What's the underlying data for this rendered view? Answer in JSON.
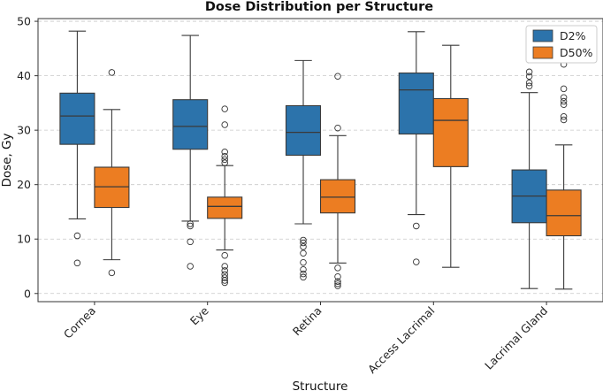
{
  "chart_data": {
    "type": "box",
    "title": "Dose Distribution per Structure",
    "xlabel": "Structure",
    "ylabel": "Dose, Gy",
    "ylim": [
      -1.5,
      50.5
    ],
    "yticks": [
      0,
      10,
      20,
      30,
      40,
      50
    ],
    "grid": "horizontal-dashed",
    "legend_position": "top-right",
    "categories": [
      "Cornea",
      "Eye",
      "Retina",
      "Access Lacrimal",
      "Lacrimal Gland"
    ],
    "series": [
      {
        "name": "D2%",
        "color": "#2c73ab",
        "boxes": [
          {
            "whislo": 13.7,
            "q1": 27.4,
            "med": 32.6,
            "q3": 36.8,
            "whishi": 48.2,
            "fliers": [
              10.6,
              5.6
            ]
          },
          {
            "whislo": 13.3,
            "q1": 26.5,
            "med": 30.7,
            "q3": 35.6,
            "whishi": 47.4,
            "fliers": [
              12.8,
              12.4,
              9.5,
              5.0
            ]
          },
          {
            "whislo": 12.8,
            "q1": 25.4,
            "med": 29.6,
            "q3": 34.5,
            "whishi": 42.8,
            "fliers": [
              9.8,
              9.3,
              8.6,
              7.4,
              5.7,
              4.4,
              3.6,
              3.0
            ]
          },
          {
            "whislo": 14.5,
            "q1": 29.3,
            "med": 37.4,
            "q3": 40.5,
            "whishi": 48.1,
            "fliers": [
              12.4,
              5.8
            ]
          },
          {
            "whislo": 0.9,
            "q1": 13.0,
            "med": 17.9,
            "q3": 22.7,
            "whishi": 36.9,
            "fliers": [
              42.9,
              40.7,
              39.9,
              38.7,
              38.1
            ]
          }
        ]
      },
      {
        "name": "D50%",
        "color": "#ec7d22",
        "boxes": [
          {
            "whislo": 6.2,
            "q1": 15.8,
            "med": 19.6,
            "q3": 23.2,
            "whishi": 33.8,
            "fliers": [
              40.6,
              3.8
            ]
          },
          {
            "whislo": 8.0,
            "q1": 13.8,
            "med": 16.0,
            "q3": 17.7,
            "whishi": 23.5,
            "fliers": [
              33.9,
              31.0,
              26.0,
              25.2,
              24.6,
              24.0,
              7.0,
              5.0,
              4.2,
              3.5,
              2.9,
              2.4,
              2.0
            ]
          },
          {
            "whislo": 5.6,
            "q1": 14.8,
            "med": 17.7,
            "q3": 20.9,
            "whishi": 29.0,
            "fliers": [
              39.9,
              30.4,
              4.7,
              3.1,
              2.2,
              1.8,
              1.4
            ]
          },
          {
            "whislo": 4.8,
            "q1": 23.3,
            "med": 31.8,
            "q3": 35.8,
            "whishi": 45.6,
            "fliers": []
          },
          {
            "whislo": 0.8,
            "q1": 10.6,
            "med": 14.3,
            "q3": 19.0,
            "whishi": 27.3,
            "fliers": [
              42.1,
              37.6,
              36.0,
              35.3,
              34.7,
              32.5,
              31.9
            ]
          }
        ]
      }
    ]
  }
}
